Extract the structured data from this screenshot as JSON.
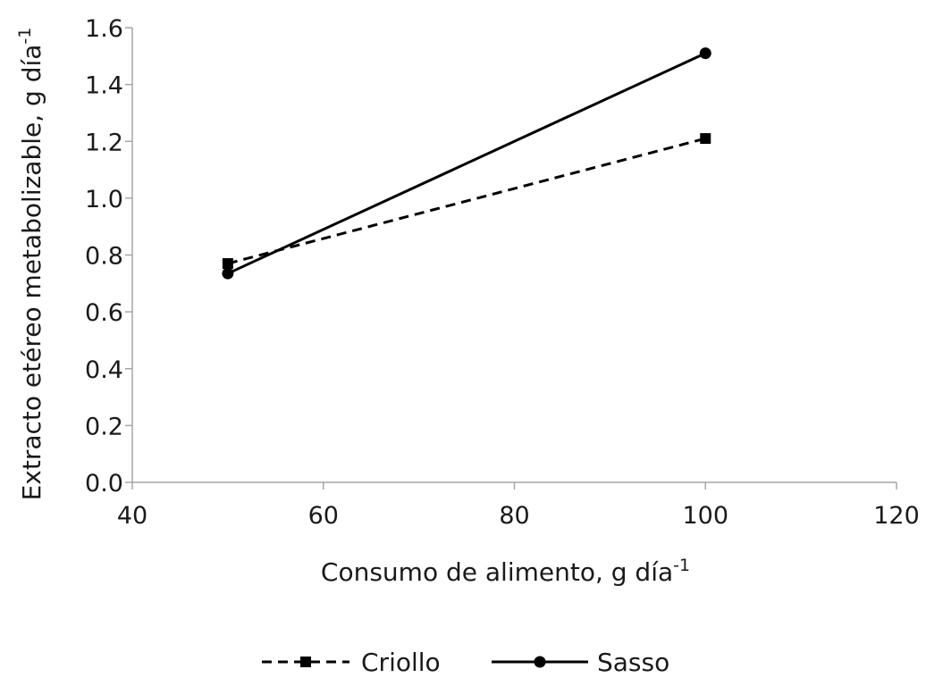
{
  "chart_data": {
    "type": "line",
    "title": "",
    "xlabel": "Consumo de alimento, g día",
    "xlabel_sup": "-1",
    "ylabel": "Extracto etéreo metabolizable, g día",
    "ylabel_sup": "-1",
    "xlim": [
      40,
      120
    ],
    "ylim": [
      0,
      1.6
    ],
    "xticks": [
      "40",
      "60",
      "80",
      "100",
      "120"
    ],
    "yticks": [
      "0.0",
      "0.2",
      "0.4",
      "0.6",
      "0.8",
      "1.0",
      "1.2",
      "1.4",
      "1.6"
    ],
    "grid": false,
    "legend_position": "bottom",
    "series": [
      {
        "name": "Criollo",
        "x": [
          50,
          100
        ],
        "y": [
          0.77,
          1.21
        ],
        "line_style": "dashed",
        "marker": "square",
        "color": "#000000"
      },
      {
        "name": "Sasso",
        "x": [
          50,
          100
        ],
        "y": [
          0.735,
          1.51
        ],
        "line_style": "solid",
        "marker": "circle",
        "color": "#000000"
      }
    ]
  }
}
